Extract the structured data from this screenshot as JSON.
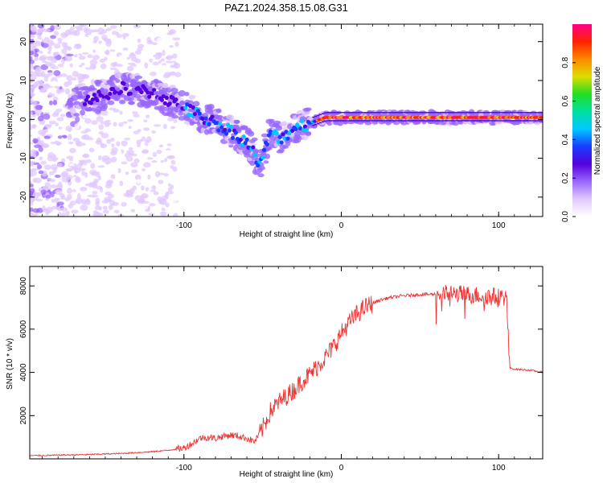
{
  "figure": {
    "title": "PAZ1.2024.358.15.08.G31"
  },
  "chart_data": [
    {
      "type": "heatmap",
      "title": "PAZ1.2024.358.15.08.G31",
      "xlabel": "Height of straight line (km)",
      "ylabel": "Frequency (Hz)",
      "xlim": [
        -198,
        128
      ],
      "ylim": [
        -25,
        24.5
      ],
      "xticks": [
        -100,
        0,
        100
      ],
      "yticks": [
        20,
        10,
        0,
        -10,
        -20
      ],
      "grid": false,
      "colorbar": {
        "label": "Normalized spectral amplitude",
        "range": [
          0,
          1
        ],
        "ticks": [
          0.0,
          0.2,
          0.4,
          0.6,
          0.8
        ],
        "colormap": [
          "#ffffff",
          "#e0c8ff",
          "#9966ff",
          "#5500dd",
          "#1a3cff",
          "#00c8ff",
          "#00e0a0",
          "#22dd22",
          "#dddd00",
          "#ff8800",
          "#ff2200",
          "#ff0088"
        ]
      },
      "ridge": {
        "x": [
          -160,
          -140,
          -120,
          -100,
          -90,
          -80,
          -70,
          -60,
          -55,
          -52,
          -50,
          -45,
          -40,
          -35,
          -30,
          -20,
          -10,
          0,
          20,
          50,
          80,
          100,
          128
        ],
        "y": [
          5,
          8,
          7,
          3,
          1,
          -1,
          -3,
          -6,
          -9,
          -12,
          -10,
          -3,
          -5,
          -4,
          -2,
          -1,
          0.5,
          0.5,
          0.5,
          0.5,
          0.5,
          0.5,
          0.5
        ]
      }
    },
    {
      "type": "line",
      "xlabel": "Height of straight line (km)",
      "ylabel": "SNR (10 * v/v)",
      "xlim": [
        -198,
        128
      ],
      "ylim": [
        0,
        8900
      ],
      "xticks": [
        -100,
        0,
        100
      ],
      "yticks": [
        2000,
        4000,
        6000,
        8000
      ],
      "grid": false,
      "color": "#ee3333",
      "series": [
        {
          "x": [
            -198,
            -180,
            -160,
            -140,
            -120,
            -110,
            -100,
            -95,
            -90,
            -85,
            -80,
            -75,
            -70,
            -65,
            -60,
            -55,
            -50,
            -45,
            -40,
            -35,
            -30,
            -25,
            -20,
            -15,
            -10,
            -5,
            0,
            5,
            10,
            15,
            20,
            25,
            30,
            40,
            50,
            60,
            70,
            80,
            90,
            100,
            105,
            107,
            110,
            120,
            128
          ],
          "y": [
            150,
            170,
            200,
            250,
            330,
            400,
            500,
            700,
            950,
            1000,
            950,
            1050,
            1100,
            1050,
            950,
            800,
            1400,
            2200,
            2600,
            2900,
            3200,
            3600,
            3900,
            4300,
            4700,
            5200,
            5800,
            6300,
            6700,
            7000,
            7200,
            7350,
            7450,
            7550,
            7600,
            7620,
            7650,
            7600,
            7550,
            7500,
            7480,
            4200,
            4150,
            4100,
            4000
          ]
        }
      ]
    }
  ]
}
